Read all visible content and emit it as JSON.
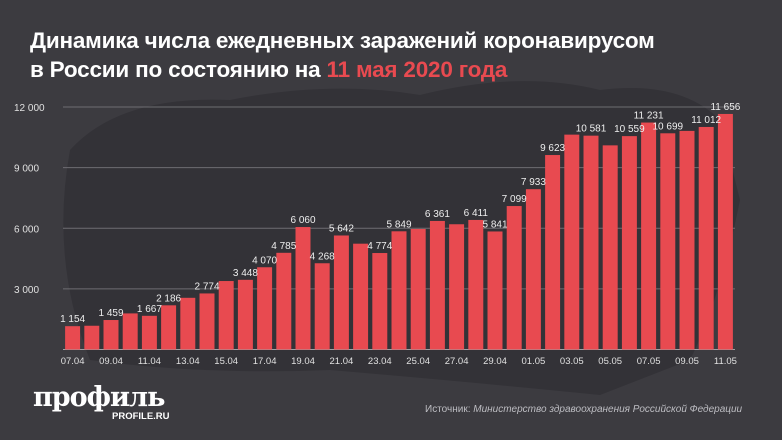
{
  "title": {
    "line1": "Динамика числа ежедневных заражений коронавирусом",
    "line2_prefix": "в России по состоянию на ",
    "line2_highlight": "11 мая 2020 года"
  },
  "colors": {
    "background": "#3c3b40",
    "bar": "#e84a50",
    "accent": "#e84a50",
    "grid": "#6e6d72"
  },
  "chart_data": {
    "type": "bar",
    "title": "Динамика числа ежедневных заражений коронавирусом в России по состоянию на 11 мая 2020 года",
    "xlabel": "",
    "ylabel": "",
    "ylim": [
      0,
      12000
    ],
    "yticks": [
      3000,
      6000,
      9000,
      12000
    ],
    "ytick_labels": [
      "3 000",
      "6 000",
      "9 000",
      "12 000"
    ],
    "grid": true,
    "categories": [
      "07.04",
      "08.04",
      "09.04",
      "10.04",
      "11.04",
      "12.04",
      "13.04",
      "14.04",
      "15.04",
      "16.04",
      "17.04",
      "18.04",
      "19.04",
      "20.04",
      "21.04",
      "22.04",
      "23.04",
      "24.04",
      "25.04",
      "26.04",
      "27.04",
      "28.04",
      "29.04",
      "30.04",
      "01.05",
      "02.05",
      "03.05",
      "04.05",
      "05.05",
      "06.05",
      "07.05",
      "08.05",
      "09.05",
      "10.05",
      "11.05"
    ],
    "values": [
      1154,
      1175,
      1459,
      1786,
      1667,
      2186,
      2558,
      2774,
      3388,
      3448,
      4070,
      4785,
      6060,
      4268,
      5642,
      5236,
      4774,
      5849,
      5966,
      6361,
      6198,
      6411,
      5841,
      7099,
      7933,
      9623,
      10633,
      10581,
      10102,
      10559,
      11231,
      10699,
      10817,
      11012,
      11656
    ],
    "data_labels": [
      "1 154",
      null,
      "1 459",
      null,
      "1 667",
      "2 186",
      null,
      "2 774",
      null,
      "3 448",
      "4 070",
      "4 785",
      "6 060",
      "4 268",
      "5 642",
      null,
      "4 774",
      "5 849",
      null,
      "6 361",
      null,
      "6 411",
      "5 841",
      "7 099",
      "7 933",
      "9 623",
      null,
      "10 581",
      null,
      "10 559",
      "11 231",
      "10 699",
      null,
      "11 012",
      "11 656"
    ],
    "xtick_labels": [
      "07.04",
      "09.04",
      "11.04",
      "13.04",
      "15.04",
      "17.04",
      "19.04",
      "21.04",
      "23.04",
      "25.04",
      "27.04",
      "29.04",
      "01.05",
      "03.05",
      "05.05",
      "07.05",
      "09.05",
      "11.05"
    ]
  },
  "logo": {
    "name": "профиль",
    "url_text": "PROFILE.RU"
  },
  "source": {
    "label": "Источник:",
    "text": " Министерство здравоохранения Российской Федерации"
  }
}
